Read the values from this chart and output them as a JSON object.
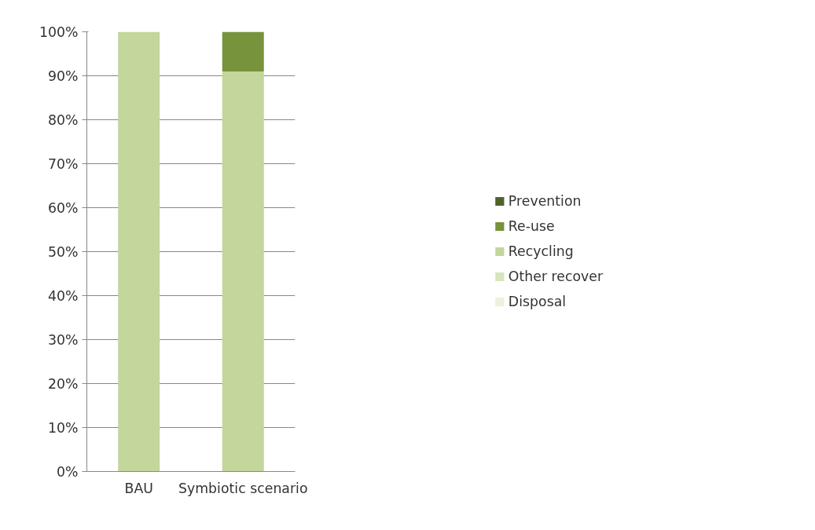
{
  "chart_data": {
    "type": "bar",
    "stacked": true,
    "categories": [
      "BAU",
      "Symbiotic scenario"
    ],
    "series": [
      {
        "name": "Disposal",
        "color": "#ebf1de",
        "values": [
          0,
          0
        ]
      },
      {
        "name": "Other recover",
        "color": "#d7e4bd",
        "values": [
          0,
          0
        ]
      },
      {
        "name": "Recycling",
        "color": "#c3d69b",
        "values": [
          100,
          91
        ]
      },
      {
        "name": "Re-use",
        "color": "#77933c",
        "values": [
          0,
          9
        ]
      },
      {
        "name": "Prevention",
        "color": "#4f6228",
        "values": [
          0,
          0
        ]
      }
    ],
    "ylim": [
      0,
      100
    ],
    "yticks": [
      {
        "value": 0,
        "label": "0%"
      },
      {
        "value": 10,
        "label": "10%"
      },
      {
        "value": 20,
        "label": "20%"
      },
      {
        "value": 30,
        "label": "30%"
      },
      {
        "value": 40,
        "label": "40%"
      },
      {
        "value": 50,
        "label": "50%"
      },
      {
        "value": 60,
        "label": "60%"
      },
      {
        "value": 70,
        "label": "70%"
      },
      {
        "value": 80,
        "label": "80%"
      },
      {
        "value": 90,
        "label": "90%"
      },
      {
        "value": 100,
        "label": "100%"
      }
    ],
    "grid": "y",
    "legend": "right"
  }
}
